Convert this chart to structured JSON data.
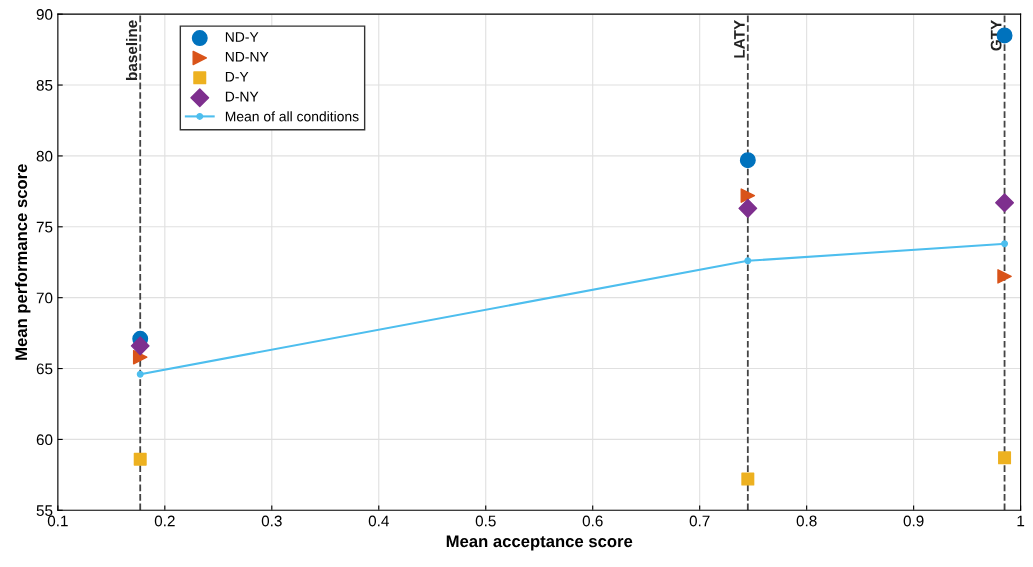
{
  "chart_data": {
    "type": "scatter",
    "xlabel": "Mean acceptance score",
    "ylabel": "Mean performance score",
    "x": [
      0.177,
      0.745,
      0.985
    ],
    "series": [
      {
        "name": "ND-Y",
        "color": "#0072bd",
        "marker": "circle",
        "values": [
          67.1,
          79.7,
          88.5
        ]
      },
      {
        "name": "ND-NY",
        "color": "#d95319",
        "marker": "triangle",
        "values": [
          65.8,
          77.2,
          71.5
        ]
      },
      {
        "name": "D-Y",
        "color": "#edb120",
        "marker": "square",
        "values": [
          58.6,
          57.2,
          58.7
        ]
      },
      {
        "name": "D-NY",
        "color": "#7e2f8e",
        "marker": "diamond",
        "values": [
          66.6,
          76.3,
          76.7
        ]
      },
      {
        "name": "Mean of all conditions",
        "color": "#4dbeee",
        "type": "line",
        "marker": "circle",
        "values": [
          64.6,
          72.6,
          73.8
        ]
      }
    ],
    "xlim": [
      0.1,
      1
    ],
    "xticks": [
      0.1,
      0.2,
      0.3,
      0.4,
      0.5,
      0.6,
      0.7,
      0.8,
      0.9,
      1
    ],
    "ylim": [
      55,
      90
    ],
    "yticks": [
      55,
      60,
      65,
      70,
      75,
      80,
      85,
      90
    ],
    "ref_lines": [
      {
        "axis": "x",
        "value": 0.177,
        "label": "baseline",
        "line_style": "dashed",
        "color": "#444444"
      },
      {
        "axis": "x",
        "value": 0.745,
        "label": "LATY",
        "line_style": "dashed",
        "color": "#444444"
      },
      {
        "axis": "x",
        "value": 0.985,
        "label": "GTY",
        "line_style": "dashed",
        "color": "#444444"
      }
    ],
    "grid": true,
    "legend": "top left"
  }
}
